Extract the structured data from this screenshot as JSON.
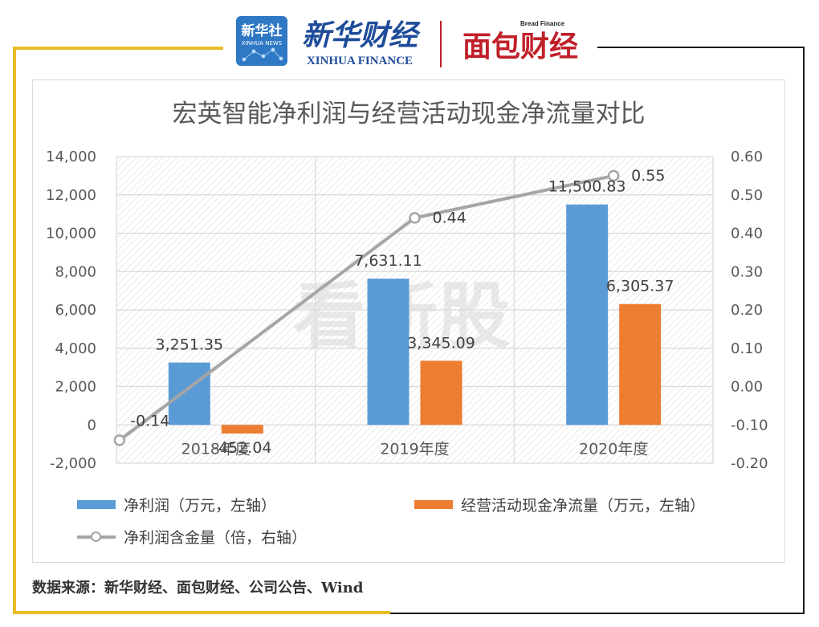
{
  "header": {
    "xinhua_logo": "新华社",
    "xinhua_news": "XINHUA NEWS",
    "brand_cn": "新华财经",
    "brand_en": "XINHUA FINANCE",
    "bread_en": "Bread Finance",
    "bread_cn": "面包财经"
  },
  "watermark": "看新股",
  "colors": {
    "net_profit": "#5b9bd5",
    "operating_cash_flow": "#ed7d31",
    "ratio_line": "#a5a5a5",
    "frame_gold": "#e9bc27",
    "title": "#595959"
  },
  "chart_data": {
    "type": "bar",
    "title": "宏英智能净利润与经营活动现金净流量对比",
    "categories": [
      "2018年度",
      "2019年度",
      "2020年度"
    ],
    "series": [
      {
        "name": "净利润（万元，左轴）",
        "axis": "left",
        "values": [
          3251.35,
          7631.11,
          11500.83
        ],
        "labels": [
          "3,251.35",
          "7,631.11",
          "11,500.83"
        ]
      },
      {
        "name": "经营活动现金净流量（万元，左轴）",
        "axis": "left",
        "values": [
          -452.04,
          3345.09,
          6305.37
        ],
        "labels": [
          "-452.04",
          "3,345.09",
          "6,305.37"
        ]
      },
      {
        "name": "净利润含金量（倍，右轴）",
        "axis": "right",
        "type": "line",
        "values": [
          -0.14,
          0.44,
          0.55
        ],
        "labels": [
          "-0.14",
          "0.44",
          "0.55"
        ]
      }
    ],
    "y_left": {
      "lim": [
        -2000,
        14000
      ],
      "ticks": [
        -2000,
        0,
        2000,
        4000,
        6000,
        8000,
        10000,
        12000,
        14000
      ],
      "tick_labels": [
        "-2,000",
        "0",
        "2,000",
        "4,000",
        "6,000",
        "8,000",
        "10,000",
        "12,000",
        "14,000"
      ]
    },
    "y_right": {
      "lim": [
        -0.2,
        0.6
      ],
      "ticks": [
        -0.2,
        -0.1,
        0,
        0.1,
        0.2,
        0.3,
        0.4,
        0.5,
        0.6
      ],
      "tick_labels": [
        "-0.20",
        "-0.10",
        "0.00",
        "0.10",
        "0.20",
        "0.30",
        "0.40",
        "0.50",
        "0.60"
      ]
    },
    "grid": true,
    "legend_position": "bottom"
  },
  "legend": {
    "items": [
      "净利润（万元，左轴）",
      "经营活动现金净流量（万元，左轴）",
      "净利润含金量（倍，右轴）"
    ]
  },
  "source_note": "数据来源：新华财经、面包财经、公司公告、Wind"
}
